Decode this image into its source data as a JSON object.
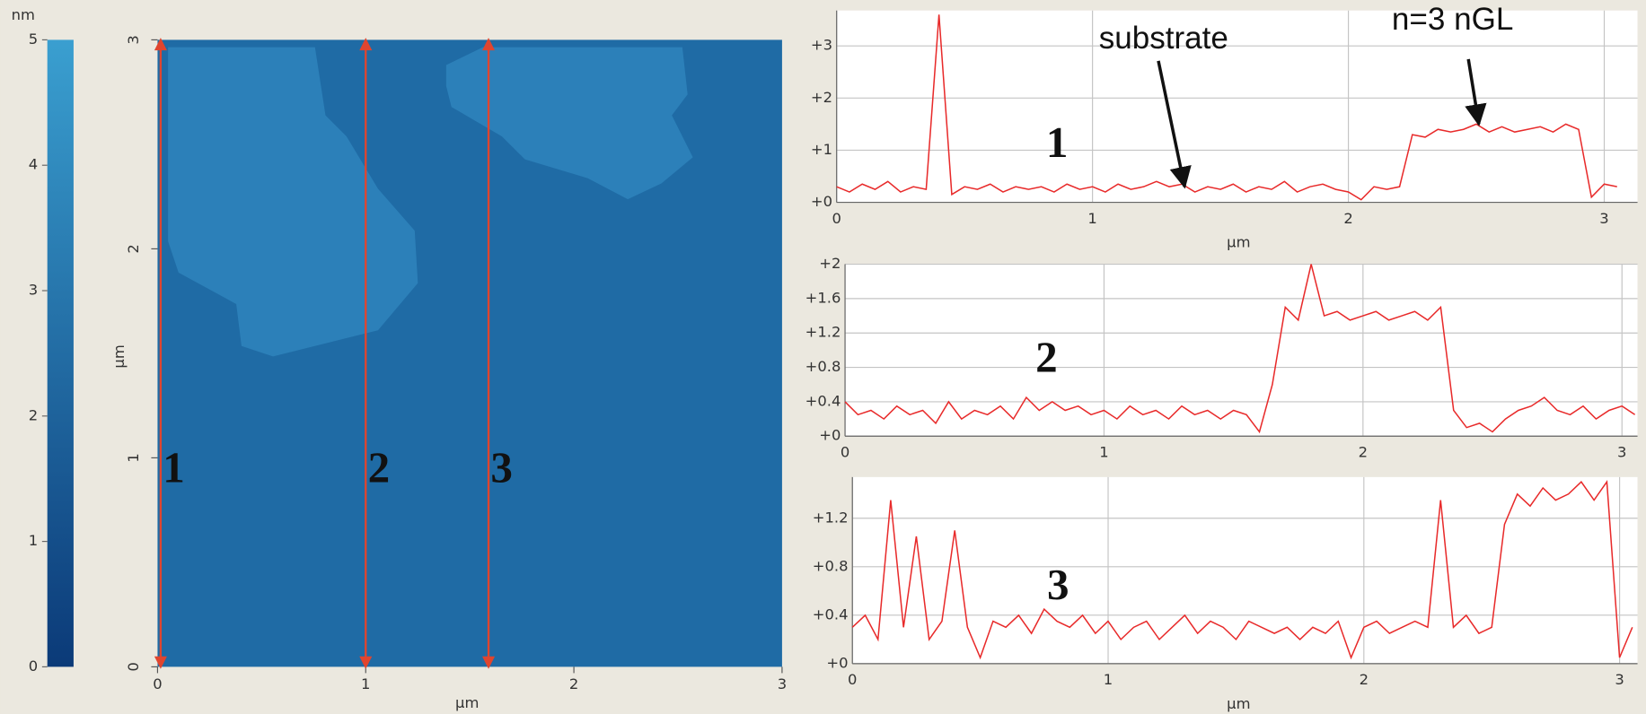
{
  "chart_data": [
    {
      "type": "colorbar",
      "unit": "nm",
      "ylim": [
        0,
        5
      ],
      "yticks": [
        0,
        1,
        2,
        3,
        4,
        5
      ],
      "colors": [
        "#0b3a78",
        "#3a9fd0"
      ]
    },
    {
      "type": "image",
      "x_label": "µm",
      "y_label": "µm",
      "xlim": [
        0,
        3
      ],
      "ylim": [
        0,
        3
      ],
      "xticks": [
        0,
        1,
        2,
        3
      ],
      "yticks": [
        0,
        1,
        2,
        3
      ],
      "line_color": "#e0452f",
      "profiles": [
        {
          "name": "1",
          "x": 0.015
        },
        {
          "name": "2",
          "x": 1.0
        },
        {
          "name": "3",
          "x": 1.59
        }
      ]
    },
    {
      "type": "line",
      "label": "1",
      "x_label": "µm",
      "color": "#e82a2a",
      "xlim": [
        0,
        3.13
      ],
      "ylim": [
        0,
        3.68
      ],
      "xticks": [
        0,
        1,
        2,
        3
      ],
      "yticks": [
        {
          "value": 0,
          "label": "+0"
        },
        {
          "value": 1,
          "label": "+1"
        },
        {
          "value": 2,
          "label": "+2"
        },
        {
          "value": 3,
          "label": "+3"
        }
      ],
      "annotations": [
        {
          "text": "substrate",
          "x": 1.36,
          "y": 0.3
        },
        {
          "text": "n=3 nGL",
          "x": 2.51,
          "y": 1.5
        }
      ],
      "x": [
        0,
        0.05,
        0.1,
        0.15,
        0.2,
        0.25,
        0.3,
        0.35,
        0.4,
        0.45,
        0.5,
        0.55,
        0.6,
        0.65,
        0.7,
        0.75,
        0.8,
        0.85,
        0.9,
        0.95,
        1,
        1.05,
        1.1,
        1.15,
        1.2,
        1.25,
        1.3,
        1.35,
        1.4,
        1.45,
        1.5,
        1.55,
        1.6,
        1.65,
        1.7,
        1.75,
        1.8,
        1.85,
        1.9,
        1.95,
        2,
        2.05,
        2.1,
        2.15,
        2.2,
        2.25,
        2.3,
        2.35,
        2.4,
        2.45,
        2.5,
        2.55,
        2.6,
        2.65,
        2.7,
        2.75,
        2.8,
        2.85,
        2.9,
        2.95,
        3,
        3.05
      ],
      "values": [
        0.3,
        0.2,
        0.35,
        0.25,
        0.4,
        0.2,
        0.3,
        0.25,
        3.6,
        0.15,
        0.3,
        0.25,
        0.35,
        0.2,
        0.3,
        0.25,
        0.3,
        0.2,
        0.35,
        0.25,
        0.3,
        0.2,
        0.35,
        0.25,
        0.3,
        0.4,
        0.3,
        0.35,
        0.2,
        0.3,
        0.25,
        0.35,
        0.2,
        0.3,
        0.25,
        0.4,
        0.2,
        0.3,
        0.35,
        0.25,
        0.2,
        0.05,
        0.3,
        0.25,
        0.3,
        1.3,
        1.25,
        1.4,
        1.35,
        1.4,
        1.5,
        1.35,
        1.45,
        1.35,
        1.4,
        1.45,
        1.35,
        1.5,
        1.4,
        0.1,
        0.35,
        0.3
      ]
    },
    {
      "type": "line",
      "label": "2",
      "color": "#e82a2a",
      "xlim": [
        0,
        3.06
      ],
      "ylim": [
        0,
        2
      ],
      "xticks": [
        0,
        1,
        2,
        3
      ],
      "yticks": [
        {
          "value": 0,
          "label": "+0"
        },
        {
          "value": 0.4,
          "label": "+0.4"
        },
        {
          "value": 0.8,
          "label": "+0.8"
        },
        {
          "value": 1.2,
          "label": "+1.2"
        },
        {
          "value": 1.6,
          "label": "+1.6"
        },
        {
          "value": 2,
          "label": "+2"
        }
      ],
      "x": [
        0,
        0.05,
        0.1,
        0.15,
        0.2,
        0.25,
        0.3,
        0.35,
        0.4,
        0.45,
        0.5,
        0.55,
        0.6,
        0.65,
        0.7,
        0.75,
        0.8,
        0.85,
        0.9,
        0.95,
        1,
        1.05,
        1.1,
        1.15,
        1.2,
        1.25,
        1.3,
        1.35,
        1.4,
        1.45,
        1.5,
        1.55,
        1.6,
        1.65,
        1.7,
        1.75,
        1.8,
        1.85,
        1.9,
        1.95,
        2,
        2.05,
        2.1,
        2.15,
        2.2,
        2.25,
        2.3,
        2.35,
        2.4,
        2.45,
        2.5,
        2.55,
        2.6,
        2.65,
        2.7,
        2.75,
        2.8,
        2.85,
        2.9,
        2.95,
        3,
        3.05
      ],
      "values": [
        0.4,
        0.25,
        0.3,
        0.2,
        0.35,
        0.25,
        0.3,
        0.15,
        0.4,
        0.2,
        0.3,
        0.25,
        0.35,
        0.2,
        0.45,
        0.3,
        0.4,
        0.3,
        0.35,
        0.25,
        0.3,
        0.2,
        0.35,
        0.25,
        0.3,
        0.2,
        0.35,
        0.25,
        0.3,
        0.2,
        0.3,
        0.25,
        0.05,
        0.6,
        1.5,
        1.35,
        2.0,
        1.4,
        1.45,
        1.35,
        1.4,
        1.45,
        1.35,
        1.4,
        1.45,
        1.35,
        1.5,
        0.3,
        0.1,
        0.15,
        0.05,
        0.2,
        0.3,
        0.35,
        0.45,
        0.3,
        0.25,
        0.35,
        0.2,
        0.3,
        0.35,
        0.25
      ]
    },
    {
      "type": "line",
      "label": "3",
      "x_label": "µm",
      "color": "#e82a2a",
      "xlim": [
        0,
        3.07
      ],
      "ylim": [
        0,
        1.54
      ],
      "xticks": [
        0,
        1,
        2,
        3
      ],
      "yticks": [
        {
          "value": 0,
          "label": "+0"
        },
        {
          "value": 0.4,
          "label": "+0.4"
        },
        {
          "value": 0.8,
          "label": "+0.8"
        },
        {
          "value": 1.2,
          "label": "+1.2"
        }
      ],
      "x": [
        0,
        0.05,
        0.1,
        0.15,
        0.2,
        0.25,
        0.3,
        0.35,
        0.4,
        0.45,
        0.5,
        0.55,
        0.6,
        0.65,
        0.7,
        0.75,
        0.8,
        0.85,
        0.9,
        0.95,
        1,
        1.05,
        1.1,
        1.15,
        1.2,
        1.25,
        1.3,
        1.35,
        1.4,
        1.45,
        1.5,
        1.55,
        1.6,
        1.65,
        1.7,
        1.75,
        1.8,
        1.85,
        1.9,
        1.95,
        2,
        2.05,
        2.1,
        2.15,
        2.2,
        2.25,
        2.3,
        2.35,
        2.4,
        2.45,
        2.5,
        2.55,
        2.6,
        2.65,
        2.7,
        2.75,
        2.8,
        2.85,
        2.9,
        2.95,
        3,
        3.05
      ],
      "values": [
        0.3,
        0.4,
        0.2,
        1.35,
        0.3,
        1.05,
        0.2,
        0.35,
        1.1,
        0.3,
        0.05,
        0.35,
        0.3,
        0.4,
        0.25,
        0.45,
        0.35,
        0.3,
        0.4,
        0.25,
        0.35,
        0.2,
        0.3,
        0.35,
        0.2,
        0.3,
        0.4,
        0.25,
        0.35,
        0.3,
        0.2,
        0.35,
        0.3,
        0.25,
        0.3,
        0.2,
        0.3,
        0.25,
        0.35,
        0.05,
        0.3,
        0.35,
        0.25,
        0.3,
        0.35,
        0.3,
        1.35,
        0.3,
        0.4,
        0.25,
        0.3,
        1.15,
        1.4,
        1.3,
        1.45,
        1.35,
        1.4,
        1.5,
        1.35,
        1.5,
        0.05,
        0.3
      ]
    }
  ]
}
